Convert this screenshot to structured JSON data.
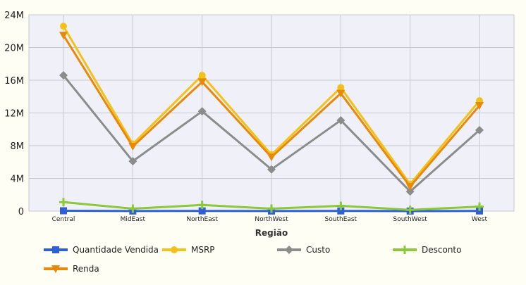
{
  "chart_data": {
    "type": "line",
    "xlabel": "Região",
    "ylabel": "",
    "categories": [
      "Central",
      "MidEast",
      "NorthEast",
      "NorthWest",
      "SouthEast",
      "SouthWest",
      "West"
    ],
    "yticks": [
      "0",
      "4M",
      "8M",
      "12M",
      "16M",
      "20M",
      "24M"
    ],
    "ylim": [
      0,
      24000000
    ],
    "grid": true,
    "legend_position": "bottom",
    "series": [
      {
        "name": "Quantidade Vendida",
        "color": "#2f5fd7",
        "marker": "square",
        "values": [
          40000,
          12000,
          25000,
          10000,
          22000,
          5000,
          18000
        ]
      },
      {
        "name": "MSRP",
        "color": "#f2c21a",
        "marker": "circle",
        "values": [
          22600000,
          8200000,
          16600000,
          6900000,
          15100000,
          3300000,
          13500000
        ]
      },
      {
        "name": "Custo",
        "color": "#8c8c8c",
        "marker": "diamond",
        "values": [
          16600000,
          6100000,
          12200000,
          5100000,
          11100000,
          2400000,
          9900000
        ]
      },
      {
        "name": "Desconto",
        "color": "#8bc83a",
        "marker": "plus",
        "values": [
          1100000,
          300000,
          750000,
          300000,
          650000,
          150000,
          550000
        ]
      },
      {
        "name": "Renda",
        "color": "#e8890b",
        "marker": "triangle-down",
        "values": [
          21500000,
          7900000,
          15800000,
          6600000,
          14400000,
          3000000,
          12900000
        ]
      }
    ]
  }
}
